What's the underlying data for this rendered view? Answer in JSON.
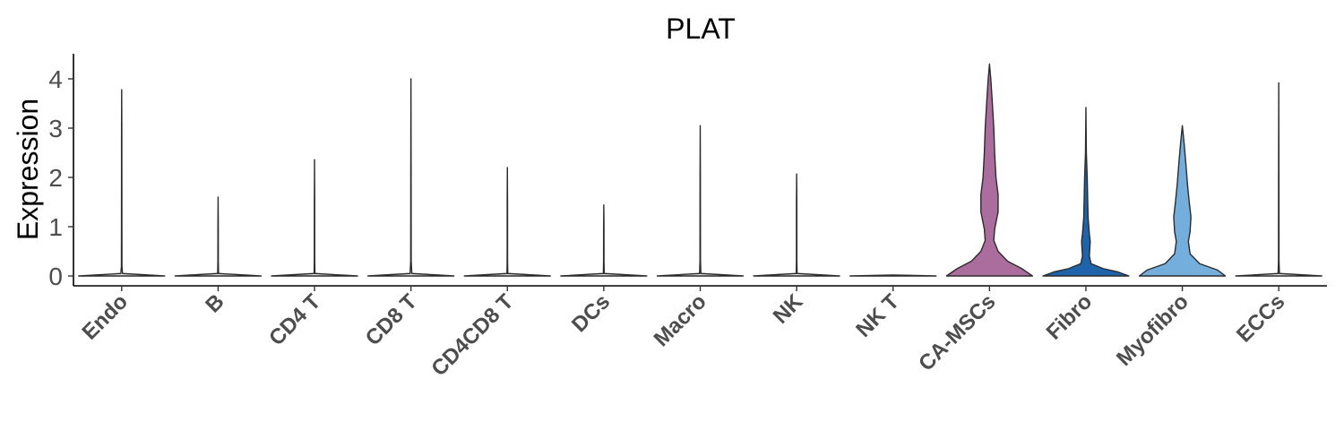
{
  "chart_data": {
    "type": "violin",
    "title": "PLAT",
    "xlabel": "",
    "ylabel": "Expression",
    "ylim": [
      -0.2,
      4.5
    ],
    "yticks": [
      0,
      1,
      2,
      3,
      4
    ],
    "grid": false,
    "legend": "none",
    "categories": [
      "Endo",
      "B",
      "CD4 T",
      "CD8 T",
      "CD4CD8 T",
      "DCs",
      "Macro",
      "NK",
      "NK T",
      "CA-MSCs",
      "Fibro",
      "Myofibro",
      "ECCs"
    ],
    "series": [
      {
        "category": "Endo",
        "color": "#e8e8e8",
        "max": 3.78,
        "density": [
          [
            0,
            1
          ],
          [
            0.05,
            0.02
          ],
          [
            0.2,
            0.006
          ],
          [
            1,
            0.005
          ],
          [
            2,
            0.004
          ],
          [
            3,
            0.003
          ],
          [
            3.78,
            0
          ]
        ]
      },
      {
        "category": "B",
        "color": "#e8e8e8",
        "max": 1.6,
        "density": [
          [
            0,
            1
          ],
          [
            0.05,
            0.01
          ],
          [
            0.3,
            0.005
          ],
          [
            1,
            0.004
          ],
          [
            1.6,
            0
          ]
        ]
      },
      {
        "category": "CD4 T",
        "color": "#e8e8e8",
        "max": 2.36,
        "density": [
          [
            0,
            1
          ],
          [
            0.05,
            0.01
          ],
          [
            0.3,
            0.005
          ],
          [
            1.5,
            0.004
          ],
          [
            2.36,
            0
          ]
        ]
      },
      {
        "category": "CD8 T",
        "color": "#e8e8e8",
        "max": 4.0,
        "density": [
          [
            0,
            1
          ],
          [
            0.05,
            0.02
          ],
          [
            0.3,
            0.006
          ],
          [
            2,
            0.004
          ],
          [
            4.0,
            0
          ]
        ]
      },
      {
        "category": "CD4CD8 T",
        "color": "#e8e8e8",
        "max": 2.2,
        "density": [
          [
            0,
            1
          ],
          [
            0.05,
            0.01
          ],
          [
            0.3,
            0.005
          ],
          [
            1.5,
            0.004
          ],
          [
            2.2,
            0
          ]
        ]
      },
      {
        "category": "DCs",
        "color": "#e8e8e8",
        "max": 1.44,
        "density": [
          [
            0,
            1
          ],
          [
            0.05,
            0.01
          ],
          [
            0.3,
            0.005
          ],
          [
            1,
            0.004
          ],
          [
            1.44,
            0
          ]
        ]
      },
      {
        "category": "Macro",
        "color": "#e8e8e8",
        "max": 3.05,
        "density": [
          [
            0,
            1
          ],
          [
            0.05,
            0.015
          ],
          [
            0.3,
            0.006
          ],
          [
            2,
            0.004
          ],
          [
            3.05,
            0
          ]
        ]
      },
      {
        "category": "NK",
        "color": "#e8e8e8",
        "max": 2.07,
        "density": [
          [
            0,
            1
          ],
          [
            0.05,
            0.01
          ],
          [
            0.3,
            0.005
          ],
          [
            1.5,
            0.004
          ],
          [
            2.07,
            0
          ]
        ]
      },
      {
        "category": "NK T",
        "color": "#e8e8e8",
        "max": 0.02,
        "density": [
          [
            0,
            1
          ],
          [
            0.02,
            0
          ]
        ]
      },
      {
        "category": "CA-MSCs",
        "color": "#ab6d9d",
        "max": 4.3,
        "density": [
          [
            0,
            1
          ],
          [
            0.15,
            0.75
          ],
          [
            0.3,
            0.42
          ],
          [
            0.5,
            0.2
          ],
          [
            0.72,
            0.1
          ],
          [
            0.95,
            0.12
          ],
          [
            1.3,
            0.2
          ],
          [
            1.65,
            0.2
          ],
          [
            2.0,
            0.15
          ],
          [
            2.5,
            0.12
          ],
          [
            3.0,
            0.1
          ],
          [
            3.6,
            0.06
          ],
          [
            4.0,
            0.03
          ],
          [
            4.3,
            0
          ]
        ]
      },
      {
        "category": "Fibro",
        "color": "#1f63ab",
        "max": 3.42,
        "density": [
          [
            0,
            1
          ],
          [
            0.08,
            0.75
          ],
          [
            0.15,
            0.4
          ],
          [
            0.25,
            0.12
          ],
          [
            0.4,
            0.08
          ],
          [
            0.55,
            0.09
          ],
          [
            0.7,
            0.1
          ],
          [
            0.85,
            0.08
          ],
          [
            1.2,
            0.05
          ],
          [
            1.6,
            0.04
          ],
          [
            2.0,
            0.03
          ],
          [
            2.5,
            0.01
          ],
          [
            3.42,
            0
          ]
        ]
      },
      {
        "category": "Myofibro",
        "color": "#74aedd",
        "max": 3.05,
        "density": [
          [
            0,
            1
          ],
          [
            0.12,
            0.82
          ],
          [
            0.25,
            0.4
          ],
          [
            0.45,
            0.18
          ],
          [
            0.7,
            0.14
          ],
          [
            0.9,
            0.18
          ],
          [
            1.2,
            0.2
          ],
          [
            1.5,
            0.16
          ],
          [
            1.85,
            0.12
          ],
          [
            2.3,
            0.08
          ],
          [
            2.7,
            0.04
          ],
          [
            3.05,
            0
          ]
        ]
      },
      {
        "category": "ECCs",
        "color": "#e8e8e8",
        "max": 3.92,
        "density": [
          [
            0,
            1
          ],
          [
            0.05,
            0.015
          ],
          [
            0.3,
            0.006
          ],
          [
            2,
            0.004
          ],
          [
            3.92,
            0
          ]
        ]
      }
    ]
  }
}
